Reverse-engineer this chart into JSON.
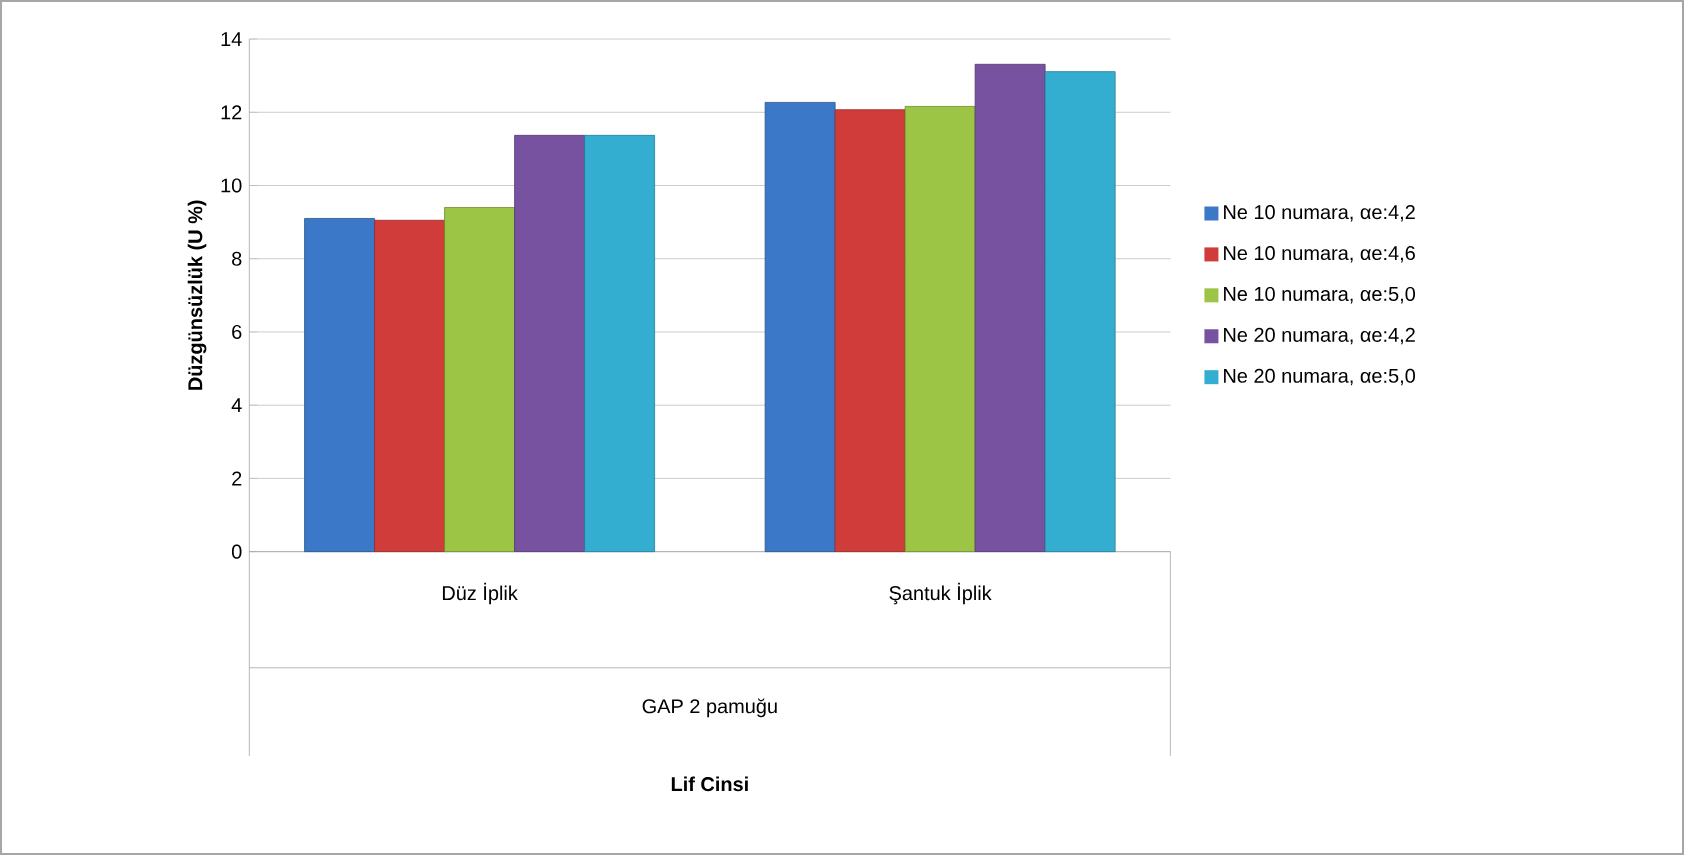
{
  "chart_data": {
    "type": "bar",
    "ylabel": "Düzgünsüzlük (U %)",
    "categories": [
      "Düz İplik",
      "Şantuk İplik"
    ],
    "annotations": [
      "GAP 2 pamuğu",
      "Lif Cinsi"
    ],
    "series": [
      {
        "name": "Ne 10 numara, αe:4,2",
        "color": "#3c78c8",
        "values": [
          9.1,
          12.27
        ]
      },
      {
        "name": "Ne 10 numara, αe:4,6",
        "color": "#d03c3a",
        "values": [
          9.05,
          12.07
        ]
      },
      {
        "name": "Ne 10 numara, αe:5,0",
        "color": "#9cc445",
        "values": [
          9.4,
          12.16
        ]
      },
      {
        "name": "Ne 20 numara, αe:4,2",
        "color": "#7752a0",
        "values": [
          11.37,
          13.31
        ]
      },
      {
        "name": "Ne 20 numara, αe:5,0",
        "color": "#33aed0",
        "values": [
          11.37,
          13.11
        ]
      }
    ],
    "ylim": [
      0,
      14
    ],
    "yticks": [
      0,
      2,
      4,
      6,
      8,
      10,
      12,
      14
    ],
    "grid": "y",
    "legend": "right"
  }
}
